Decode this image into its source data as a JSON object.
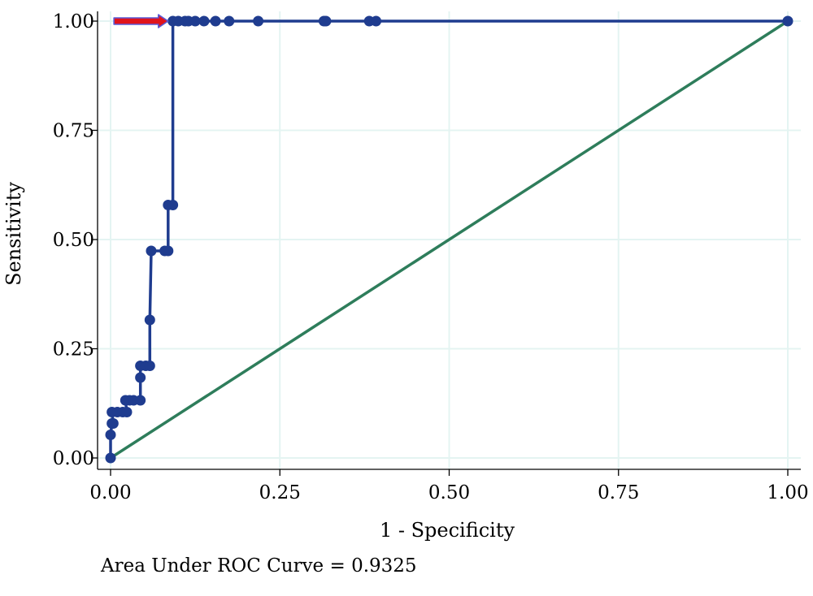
{
  "chart_data": {
    "type": "line",
    "title": "",
    "xlabel": "1 - Specificity",
    "ylabel": "Sensitivity",
    "xlim": [
      0,
      1
    ],
    "ylim": [
      0,
      1
    ],
    "x_ticks": [
      "0.00",
      "0.25",
      "0.50",
      "0.75",
      "1.00"
    ],
    "y_ticks": [
      "0.00",
      "0.25",
      "0.50",
      "0.75",
      "1.00"
    ],
    "grid": true,
    "series": [
      {
        "kind": "roc",
        "color": "#1f3c8f",
        "markers": true,
        "points": [
          [
            0.0,
            0.0
          ],
          [
            0.0,
            0.053
          ],
          [
            0.002,
            0.079
          ],
          [
            0.004,
            0.079
          ],
          [
            0.002,
            0.105
          ],
          [
            0.01,
            0.105
          ],
          [
            0.018,
            0.105
          ],
          [
            0.024,
            0.105
          ],
          [
            0.022,
            0.132
          ],
          [
            0.028,
            0.132
          ],
          [
            0.034,
            0.132
          ],
          [
            0.044,
            0.132
          ],
          [
            0.044,
            0.184
          ],
          [
            0.044,
            0.211
          ],
          [
            0.052,
            0.211
          ],
          [
            0.058,
            0.211
          ],
          [
            0.058,
            0.316
          ],
          [
            0.06,
            0.474
          ],
          [
            0.08,
            0.474
          ],
          [
            0.085,
            0.474
          ],
          [
            0.085,
            0.579
          ],
          [
            0.092,
            0.579
          ],
          [
            0.092,
            1.0
          ],
          [
            0.1,
            1.0
          ],
          [
            0.11,
            1.0
          ],
          [
            0.115,
            1.0
          ],
          [
            0.125,
            1.0
          ],
          [
            0.138,
            1.0
          ],
          [
            0.155,
            1.0
          ],
          [
            0.175,
            1.0
          ],
          [
            0.218,
            1.0
          ],
          [
            0.315,
            1.0
          ],
          [
            0.318,
            1.0
          ],
          [
            0.382,
            1.0
          ],
          [
            0.392,
            1.0
          ],
          [
            1.0,
            1.0
          ]
        ]
      },
      {
        "kind": "reference",
        "color": "#2e7d5b",
        "markers": false,
        "points": [
          [
            0,
            0
          ],
          [
            1,
            1
          ]
        ]
      }
    ],
    "annotation_arrow": {
      "color": "#e0141c",
      "outline": "#5a5ad6",
      "from": [
        0.005,
        1.0
      ],
      "to": [
        0.085,
        1.0
      ]
    },
    "note": "Area Under ROC Curve = 0.9325"
  }
}
